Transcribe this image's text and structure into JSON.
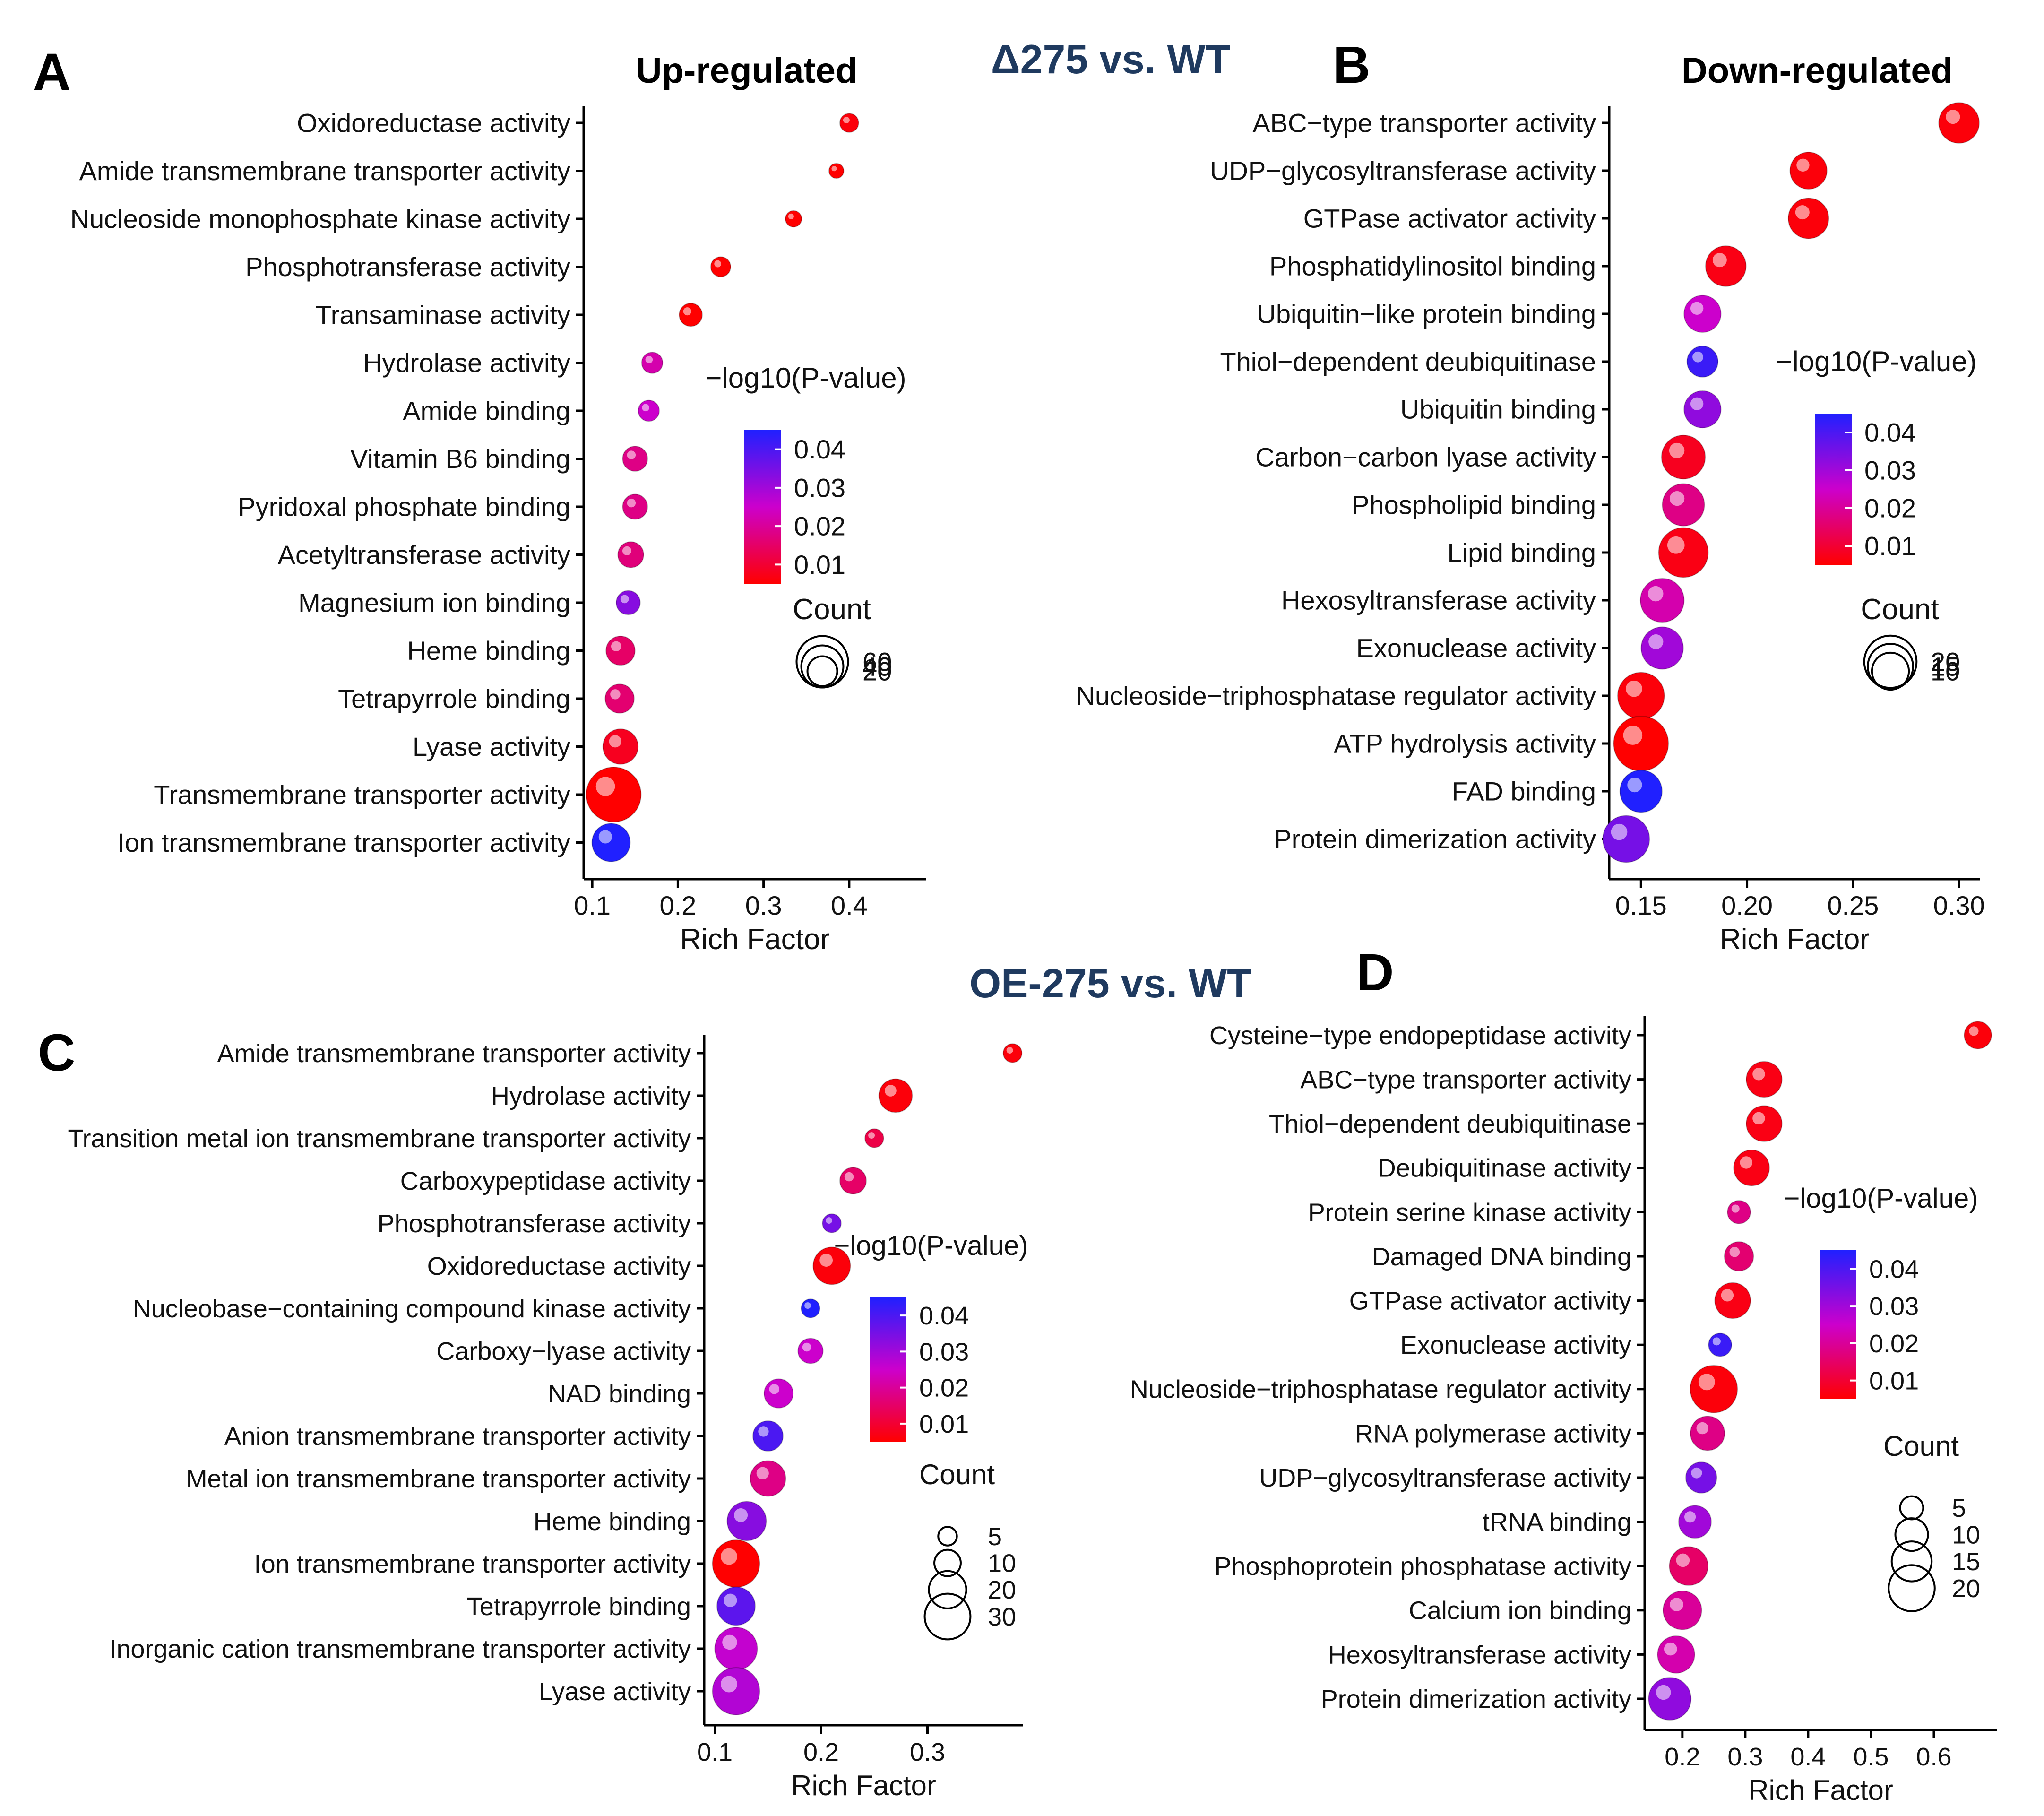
{
  "figure": {
    "section_top": "Δ275 vs. WT",
    "section_bottom": "OE-275 vs. WT"
  },
  "colors": {
    "low_p": "#ff0000",
    "mid_p": "#cc00cc",
    "high_p": "#2020ff",
    "axis": "#000000"
  },
  "legend_common": {
    "pvalue_title": "−log10(P-value)",
    "count_title": "Count",
    "xlabel": "Rich Factor"
  },
  "chart_data": [
    {
      "panel": "A",
      "type": "scatter",
      "title": "Up-regulated",
      "xlabel": "Rich Factor",
      "xlim": [
        0.09,
        0.49
      ],
      "xticks": [
        0.1,
        0.2,
        0.3,
        0.4
      ],
      "xticklabels": [
        "0.1",
        "0.2",
        "0.3",
        "0.4"
      ],
      "categories": [
        "Oxidoreductase activity",
        "Amide transmembrane transporter activity",
        "Nucleoside monophosphate kinase activity",
        "Phosphotransferase activity",
        "Transaminase activity",
        "Hydrolase activity",
        "Amide binding",
        "Vitamin B6 binding",
        "Pyridoxal phosphate binding",
        "Acetyltransferase activity",
        "Magnesium ion binding",
        "Heme binding",
        "Tetrapyrrole binding",
        "Lyase activity",
        "Transmembrane transporter activity",
        "Ion transmembrane transporter activity"
      ],
      "rich_factor": [
        0.4,
        0.385,
        0.335,
        0.25,
        0.215,
        0.17,
        0.166,
        0.15,
        0.15,
        0.145,
        0.142,
        0.133,
        0.132,
        0.133,
        0.125,
        0.122
      ],
      "pvalue": [
        0.006,
        0.004,
        0.005,
        0.005,
        0.004,
        0.022,
        0.025,
        0.018,
        0.018,
        0.017,
        0.033,
        0.015,
        0.016,
        0.008,
        0.004,
        0.045
      ],
      "count": [
        8,
        5,
        6,
        9,
        12,
        10,
        10,
        14,
        14,
        15,
        13,
        19,
        19,
        28,
        68,
        33
      ],
      "pvalue_legend": {
        "ticks": [
          0.04,
          0.03,
          0.02,
          0.01
        ],
        "labels": [
          "0.04",
          "0.03",
          "0.02",
          "0.01"
        ]
      },
      "count_legend": {
        "values": [
          20,
          40,
          60
        ],
        "labels": [
          "20",
          "40",
          "60"
        ]
      }
    },
    {
      "panel": "B",
      "type": "scatter",
      "title": "Down-regulated",
      "xlabel": "Rich Factor",
      "xlim": [
        0.135,
        0.31
      ],
      "xticks": [
        0.15,
        0.2,
        0.25,
        0.3
      ],
      "xticklabels": [
        "0.15",
        "0.20",
        "0.25",
        "0.30"
      ],
      "categories": [
        "ABC−type transporter activity",
        "UDP−glycosyltransferase activity",
        "GTPase activator activity",
        "Phosphatidylinositol binding",
        "Ubiquitin−like protein binding",
        "Thiol−dependent deubiquitinase",
        "Ubiquitin binding",
        "Carbon−carbon lyase activity",
        "Phospholipid binding",
        "Lipid binding",
        "Hexosyltransferase activity",
        "Exonuclease activity",
        "Nucleoside−triphosphatase regulator activity",
        "ATP hydrolysis activity",
        "FAD binding",
        "Protein dimerization activity"
      ],
      "rich_factor": [
        0.3,
        0.229,
        0.229,
        0.19,
        0.179,
        0.179,
        0.179,
        0.17,
        0.17,
        0.17,
        0.16,
        0.16,
        0.15,
        0.15,
        0.15,
        0.143
      ],
      "pvalue": [
        0.006,
        0.006,
        0.006,
        0.007,
        0.025,
        0.042,
        0.032,
        0.008,
        0.018,
        0.007,
        0.022,
        0.03,
        0.006,
        0.004,
        0.045,
        0.035
      ],
      "count": [
        12,
        10,
        12,
        12,
        10,
        7,
        10,
        14,
        13,
        18,
        14,
        13,
        16,
        22,
        13,
        16
      ],
      "pvalue_legend": {
        "ticks": [
          0.04,
          0.03,
          0.02,
          0.01
        ],
        "labels": [
          "0.04",
          "0.03",
          "0.02",
          "0.01"
        ]
      },
      "count_legend": {
        "values": [
          10,
          15,
          20
        ],
        "labels": [
          "10",
          "15",
          "20"
        ]
      }
    },
    {
      "panel": "C",
      "type": "scatter",
      "title": "",
      "xlabel": "Rich Factor",
      "xlim": [
        0.09,
        0.39
      ],
      "xticks": [
        0.1,
        0.2,
        0.3
      ],
      "xticklabels": [
        "0.1",
        "0.2",
        "0.3"
      ],
      "categories": [
        "Amide transmembrane transporter activity",
        "Hydrolase activity",
        "Transition metal ion transmembrane transporter activity",
        "Carboxypeptidase activity",
        "Phosphotransferase activity",
        "Oxidoreductase activity",
        "Nucleobase−containing compound kinase activity",
        "Carboxy−lyase activity",
        "NAD binding",
        "Anion transmembrane transporter activity",
        "Metal ion transmembrane transporter activity",
        "Heme binding",
        "Ion transmembrane transporter activity",
        "Tetrapyrrole binding",
        "Inorganic cation transmembrane transporter activity",
        "Lyase activity"
      ],
      "rich_factor": [
        0.38,
        0.27,
        0.25,
        0.23,
        0.21,
        0.21,
        0.19,
        0.19,
        0.16,
        0.15,
        0.15,
        0.13,
        0.12,
        0.12,
        0.12,
        0.12
      ],
      "pvalue": [
        0.006,
        0.006,
        0.012,
        0.015,
        0.035,
        0.006,
        0.045,
        0.025,
        0.025,
        0.04,
        0.018,
        0.033,
        0.004,
        0.038,
        0.026,
        0.028
      ],
      "count": [
        5,
        16,
        5,
        10,
        5,
        20,
        5,
        9,
        12,
        13,
        18,
        22,
        32,
        21,
        26,
        32
      ],
      "pvalue_legend": {
        "ticks": [
          0.04,
          0.03,
          0.02,
          0.01
        ],
        "labels": [
          "0.04",
          "0.03",
          "0.02",
          "0.01"
        ]
      },
      "count_legend": {
        "values": [
          5,
          10,
          20,
          30
        ],
        "labels": [
          "5",
          "10",
          "20",
          "30"
        ]
      }
    },
    {
      "panel": "D",
      "type": "scatter",
      "title": "",
      "xlabel": "Rich Factor",
      "xlim": [
        0.14,
        0.7
      ],
      "xticks": [
        0.2,
        0.3,
        0.4,
        0.5,
        0.6
      ],
      "xticklabels": [
        "0.2",
        "0.3",
        "0.4",
        "0.5",
        "0.6"
      ],
      "categories": [
        "Cysteine−type endopeptidase activity",
        "ABC−type transporter activity",
        "Thiol−dependent deubiquitinase",
        "Deubiquitinase activity",
        "Protein serine kinase activity",
        "Damaged DNA binding",
        "GTPase activator activity",
        "Exonuclease activity",
        "Nucleoside−triphosphatase regulator activity",
        "RNA polymerase activity",
        "UDP−glycosyltransferase activity",
        "tRNA binding",
        "Phosphoprotein phosphatase activity",
        "Calcium ion binding",
        "Hexosyltransferase activity",
        "Protein dimerization activity"
      ],
      "rich_factor": [
        0.67,
        0.33,
        0.33,
        0.31,
        0.29,
        0.29,
        0.28,
        0.26,
        0.25,
        0.24,
        0.23,
        0.22,
        0.21,
        0.2,
        0.19,
        0.18
      ],
      "pvalue": [
        0.006,
        0.007,
        0.007,
        0.007,
        0.018,
        0.016,
        0.007,
        0.042,
        0.006,
        0.018,
        0.035,
        0.03,
        0.015,
        0.02,
        0.022,
        0.032
      ],
      "count": [
        7,
        12,
        12,
        12,
        5,
        8,
        12,
        5,
        21,
        11,
        9,
        10,
        14,
        14,
        13,
        17
      ],
      "pvalue_legend": {
        "ticks": [
          0.04,
          0.03,
          0.02,
          0.01
        ],
        "labels": [
          "0.04",
          "0.03",
          "0.02",
          "0.01"
        ]
      },
      "count_legend": {
        "values": [
          5,
          10,
          15,
          20
        ],
        "labels": [
          "5",
          "10",
          "15",
          "20"
        ]
      }
    }
  ]
}
